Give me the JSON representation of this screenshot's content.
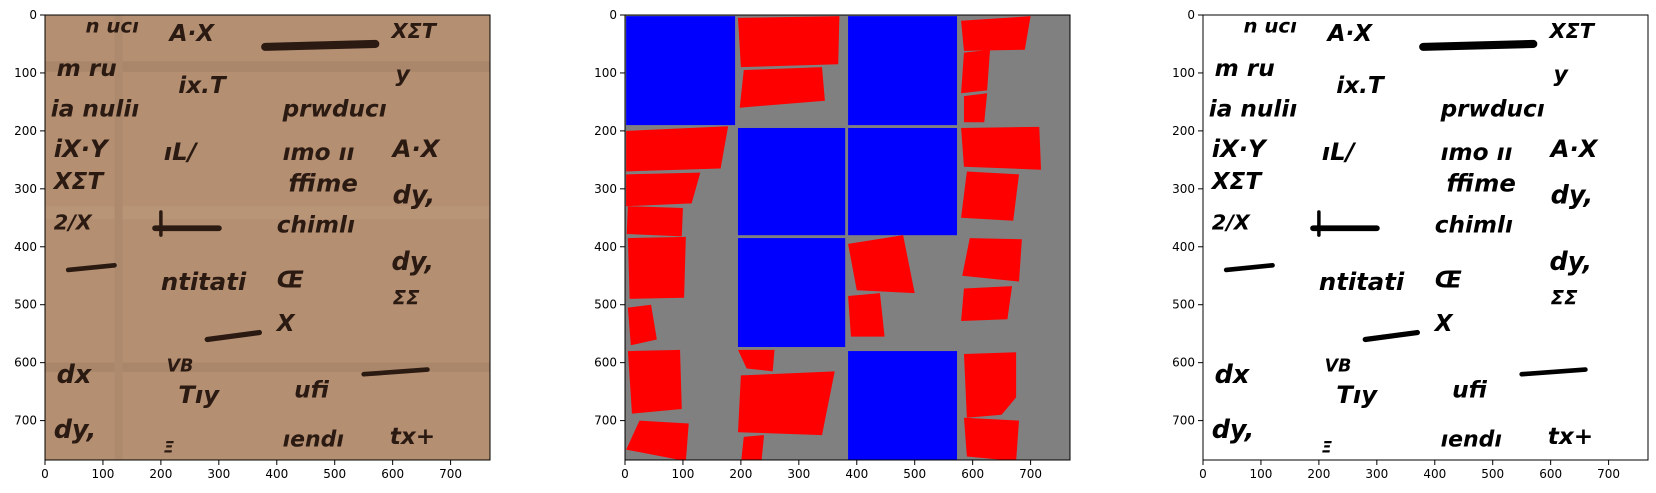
{
  "panels": [
    {
      "id": "manuscript",
      "kind": "photo",
      "x_ticks": [
        "0",
        "100",
        "200",
        "300",
        "400",
        "500",
        "600",
        "700"
      ],
      "y_ticks": [
        "0",
        "100",
        "200",
        "300",
        "400",
        "500",
        "600",
        "700"
      ],
      "colors": {
        "parchment": "#b48f72",
        "ink": "#2a1a12"
      },
      "fragments": [
        {
          "t": "n ucı",
          "x": 70,
          "y": 30,
          "s": 34
        },
        {
          "t": "A·X",
          "x": 215,
          "y": 45,
          "s": 40
        },
        {
          "t": "XΣT",
          "x": 598,
          "y": 40,
          "s": 36
        },
        {
          "t": "m ru",
          "x": 20,
          "y": 105,
          "s": 40
        },
        {
          "t": "ix.T",
          "x": 230,
          "y": 135,
          "s": 40
        },
        {
          "t": "y",
          "x": 605,
          "y": 115,
          "s": 38
        },
        {
          "t": "ia nuliı",
          "x": 10,
          "y": 175,
          "s": 40
        },
        {
          "t": "prwducı",
          "x": 410,
          "y": 175,
          "s": 40
        },
        {
          "t": "iX·Y",
          "x": 15,
          "y": 245,
          "s": 42
        },
        {
          "t": "ıL/",
          "x": 205,
          "y": 250,
          "s": 42
        },
        {
          "t": "ımo ıı",
          "x": 410,
          "y": 250,
          "s": 40
        },
        {
          "t": "A·X",
          "x": 600,
          "y": 245,
          "s": 42
        },
        {
          "t": "XΣT",
          "x": 15,
          "y": 300,
          "s": 40
        },
        {
          "t": "ffime",
          "x": 420,
          "y": 305,
          "s": 42
        },
        {
          "t": "dy,",
          "x": 600,
          "y": 325,
          "s": 44
        },
        {
          "t": "2/X",
          "x": 15,
          "y": 370,
          "s": 36
        },
        {
          "t": "chimlı",
          "x": 400,
          "y": 375,
          "s": 40
        },
        {
          "t": "dy,",
          "x": 598,
          "y": 440,
          "s": 44
        },
        {
          "t": "ntitati",
          "x": 200,
          "y": 475,
          "s": 42
        },
        {
          "t": "Œ",
          "x": 400,
          "y": 470,
          "s": 40
        },
        {
          "t": "ΣΣ",
          "x": 600,
          "y": 500,
          "s": 34
        },
        {
          "t": "X",
          "x": 400,
          "y": 545,
          "s": 40
        },
        {
          "t": "dx",
          "x": 20,
          "y": 635,
          "s": 44
        },
        {
          "t": "VB",
          "x": 210,
          "y": 615,
          "s": 30
        },
        {
          "t": "Tıy",
          "x": 230,
          "y": 670,
          "s": 42
        },
        {
          "t": "ufi",
          "x": 430,
          "y": 660,
          "s": 40
        },
        {
          "t": "dy,",
          "x": 15,
          "y": 730,
          "s": 44
        },
        {
          "t": "Ξ",
          "x": 205,
          "y": 755,
          "s": 28
        },
        {
          "t": "ıendı",
          "x": 410,
          "y": 745,
          "s": 38
        },
        {
          "t": "tx+",
          "x": 595,
          "y": 740,
          "s": 40
        }
      ]
    },
    {
      "id": "segmentation",
      "kind": "mask",
      "x_ticks": [
        "0",
        "100",
        "200",
        "300",
        "400",
        "500",
        "600",
        "700"
      ],
      "y_ticks": [
        "0",
        "100",
        "200",
        "300",
        "400",
        "500",
        "600",
        "700"
      ],
      "colors": {
        "background": "#808080",
        "block": "#0000ff",
        "region": "#ff0000"
      }
    },
    {
      "id": "binarized",
      "kind": "photo",
      "x_ticks": [
        "0",
        "100",
        "200",
        "300",
        "400",
        "500",
        "600",
        "700"
      ],
      "y_ticks": [
        "0",
        "100",
        "200",
        "300",
        "400",
        "500",
        "600",
        "700"
      ],
      "colors": {
        "parchment": "#ffffff",
        "ink": "#000000"
      }
    }
  ]
}
